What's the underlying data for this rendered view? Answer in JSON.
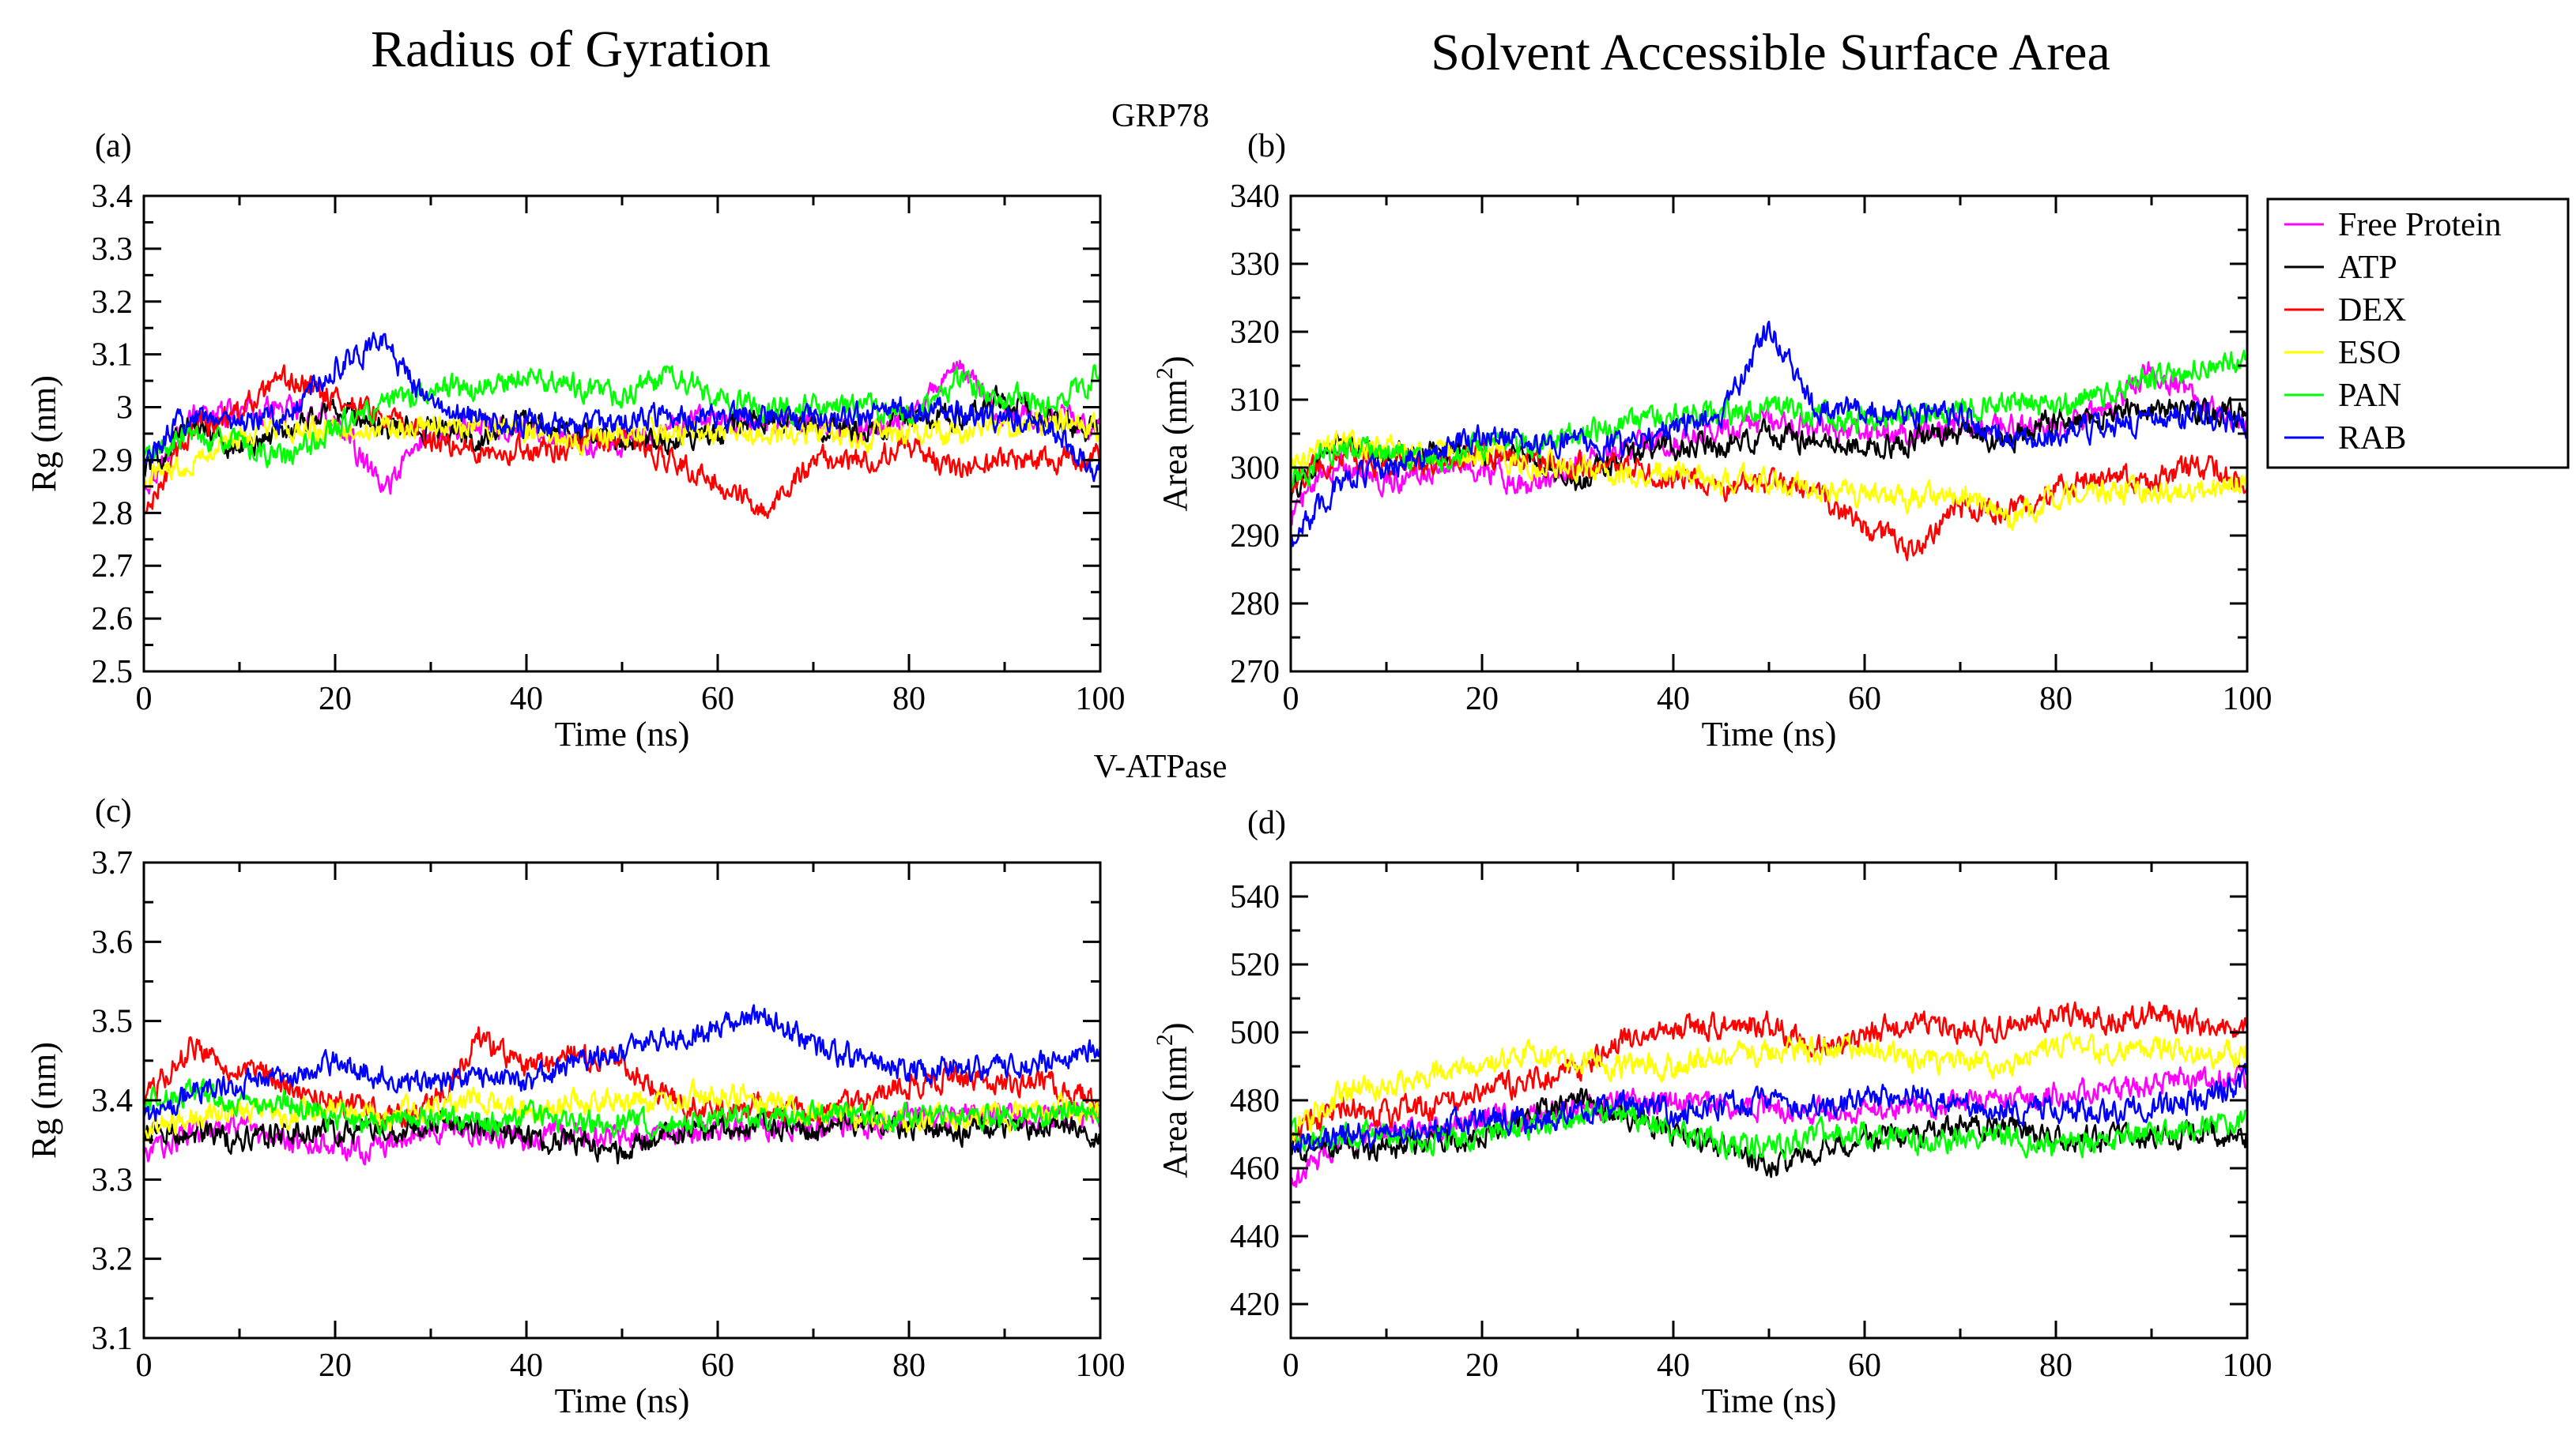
{
  "figure": {
    "column_titles": [
      "Radius of Gyration",
      "Solvent Accessible Surface Area"
    ],
    "section_titles": [
      "GRP78",
      "V-ATPase"
    ]
  },
  "legend": {
    "entries": [
      {
        "label": "Free Protein",
        "color": "#ff00ff"
      },
      {
        "label": "ATP",
        "color": "#000000"
      },
      {
        "label": "DEX",
        "color": "#ff0000"
      },
      {
        "label": "ESO",
        "color": "#ffff00"
      },
      {
        "label": "PAN",
        "color": "#00ff00"
      },
      {
        "label": "RAB",
        "color": "#0000ff"
      }
    ]
  },
  "chart_data": [
    {
      "type": "line",
      "panel": "(a)",
      "section": "GRP78",
      "xlabel": "Time (ns)",
      "ylabel": "Rg (nm)",
      "xlim": [
        0,
        100
      ],
      "ylim": [
        2.5,
        3.4
      ],
      "xticks": [
        "0",
        "20",
        "40",
        "60",
        "80",
        "100"
      ],
      "yticks": [
        "2.5",
        "2.6",
        "2.7",
        "2.8",
        "2.9",
        "3",
        "3.1",
        "3.2",
        "3.3",
        "3.4"
      ],
      "x": [
        0,
        5,
        10,
        15,
        20,
        25,
        30,
        35,
        40,
        45,
        50,
        55,
        60,
        65,
        70,
        75,
        80,
        85,
        90,
        95,
        100
      ],
      "series": [
        {
          "name": "Free Protein",
          "color": "#ff00ff",
          "values": [
            2.85,
            2.98,
            2.99,
            3.0,
            2.98,
            2.84,
            2.96,
            2.97,
            2.96,
            2.94,
            2.93,
            2.96,
            2.98,
            2.97,
            2.97,
            2.95,
            2.97,
            3.08,
            2.98,
            2.98,
            2.96
          ]
        },
        {
          "name": "ATP",
          "color": "#000000",
          "values": [
            2.88,
            2.97,
            2.92,
            2.96,
            3.0,
            2.96,
            2.96,
            2.94,
            2.98,
            2.95,
            2.93,
            2.94,
            2.95,
            2.98,
            2.96,
            2.96,
            2.98,
            2.98,
            3.02,
            2.97,
            2.95
          ]
        },
        {
          "name": "DEX",
          "color": "#ff0000",
          "values": [
            2.79,
            2.96,
            2.99,
            3.05,
            3.02,
            2.98,
            2.94,
            2.92,
            2.92,
            2.93,
            2.94,
            2.9,
            2.86,
            2.8,
            2.9,
            2.9,
            2.93,
            2.88,
            2.9,
            2.9,
            2.91
          ]
        },
        {
          "name": "ESO",
          "color": "#ffff00",
          "values": [
            2.87,
            2.9,
            2.94,
            2.96,
            2.95,
            2.96,
            2.97,
            2.96,
            2.95,
            2.94,
            2.95,
            2.96,
            2.95,
            2.95,
            2.96,
            2.94,
            2.95,
            2.95,
            2.96,
            2.97,
            2.96
          ]
        },
        {
          "name": "PAN",
          "color": "#00ff00",
          "values": [
            2.9,
            2.95,
            2.93,
            2.9,
            2.96,
            3.0,
            3.04,
            3.03,
            3.06,
            3.04,
            3.02,
            3.06,
            3.02,
            3.0,
            3.0,
            3.0,
            2.98,
            3.05,
            3.02,
            3.0,
            3.06
          ]
        },
        {
          "name": "RAB",
          "color": "#0000ff",
          "values": [
            2.9,
            2.99,
            2.97,
            2.98,
            3.08,
            3.12,
            3.0,
            2.98,
            2.97,
            2.96,
            2.97,
            2.98,
            2.98,
            2.98,
            2.98,
            2.98,
            3.0,
            2.99,
            2.98,
            2.96,
            2.88
          ]
        }
      ]
    },
    {
      "type": "line",
      "panel": "(b)",
      "section": "GRP78",
      "xlabel": "Time (ns)",
      "ylabel": "Area (nm",
      "ylabel_sup": "2",
      "ylabel_end": ")",
      "xlim": [
        0,
        100
      ],
      "ylim": [
        270,
        340
      ],
      "xticks": [
        "0",
        "20",
        "40",
        "60",
        "80",
        "100"
      ],
      "yticks": [
        "270",
        "280",
        "290",
        "300",
        "310",
        "320",
        "330",
        "340"
      ],
      "x": [
        0,
        5,
        10,
        15,
        20,
        25,
        30,
        35,
        40,
        45,
        50,
        55,
        60,
        65,
        70,
        75,
        80,
        85,
        90,
        95,
        100
      ],
      "series": [
        {
          "name": "Free Protein",
          "color": "#ff00ff",
          "values": [
            293,
            301,
            298,
            300,
            300,
            297,
            301,
            303,
            304,
            306,
            307,
            306,
            305,
            305,
            306,
            306,
            306,
            308,
            315,
            310,
            306
          ]
        },
        {
          "name": "ATP",
          "color": "#000000",
          "values": [
            296,
            304,
            302,
            302,
            302,
            302,
            298,
            302,
            303,
            303,
            305,
            304,
            303,
            304,
            305,
            304,
            307,
            307,
            309,
            308,
            308
          ]
        },
        {
          "name": "DEX",
          "color": "#ff0000",
          "values": [
            298,
            302,
            300,
            301,
            302,
            301,
            300,
            300,
            298,
            297,
            298,
            296,
            291,
            288,
            294,
            293,
            297,
            299,
            298,
            300,
            298
          ]
        },
        {
          "name": "ESO",
          "color": "#ffff00",
          "values": [
            300,
            304,
            303,
            302,
            302,
            301,
            300,
            299,
            299,
            298,
            298,
            297,
            296,
            295,
            296,
            292,
            296,
            297,
            296,
            297,
            298
          ]
        },
        {
          "name": "PAN",
          "color": "#00ff00",
          "values": [
            298,
            303,
            302,
            301,
            303,
            303,
            305,
            306,
            308,
            308,
            309,
            308,
            307,
            308,
            308,
            310,
            309,
            311,
            313,
            315,
            316
          ]
        },
        {
          "name": "RAB",
          "color": "#0000ff",
          "values": [
            289,
            298,
            300,
            302,
            305,
            304,
            304,
            303,
            306,
            307,
            321,
            308,
            309,
            308,
            308,
            304,
            305,
            306,
            307,
            308,
            306
          ]
        }
      ]
    },
    {
      "type": "line",
      "panel": "(c)",
      "section": "V-ATPase",
      "xlabel": "Time (ns)",
      "ylabel": "Rg (nm)",
      "xlim": [
        0,
        100
      ],
      "ylim": [
        3.1,
        3.7
      ],
      "xticks": [
        "0",
        "20",
        "40",
        "60",
        "80",
        "100"
      ],
      "yticks": [
        "3.1",
        "3.2",
        "3.3",
        "3.4",
        "3.5",
        "3.6",
        "3.7"
      ],
      "x": [
        0,
        5,
        10,
        15,
        20,
        25,
        30,
        35,
        40,
        45,
        50,
        55,
        60,
        65,
        70,
        75,
        80,
        85,
        90,
        95,
        100
      ],
      "series": [
        {
          "name": "Free Protein",
          "color": "#ff00ff",
          "values": [
            3.33,
            3.36,
            3.36,
            3.35,
            3.34,
            3.34,
            3.36,
            3.36,
            3.35,
            3.36,
            3.35,
            3.36,
            3.36,
            3.37,
            3.37,
            3.37,
            3.38,
            3.38,
            3.38,
            3.38,
            3.38
          ]
        },
        {
          "name": "ATP",
          "color": "#000000",
          "values": [
            3.36,
            3.36,
            3.35,
            3.36,
            3.36,
            3.36,
            3.37,
            3.37,
            3.35,
            3.35,
            3.33,
            3.36,
            3.36,
            3.37,
            3.36,
            3.37,
            3.37,
            3.36,
            3.37,
            3.37,
            3.36
          ]
        },
        {
          "name": "DEX",
          "color": "#ff0000",
          "values": [
            3.4,
            3.47,
            3.44,
            3.42,
            3.4,
            3.38,
            3.39,
            3.48,
            3.44,
            3.46,
            3.45,
            3.4,
            3.39,
            3.39,
            3.38,
            3.4,
            3.42,
            3.43,
            3.42,
            3.42,
            3.4
          ]
        },
        {
          "name": "ESO",
          "color": "#ffff00",
          "values": [
            3.36,
            3.38,
            3.39,
            3.38,
            3.39,
            3.38,
            3.39,
            3.4,
            3.39,
            3.4,
            3.4,
            3.4,
            3.41,
            3.4,
            3.39,
            3.38,
            3.37,
            3.38,
            3.38,
            3.39,
            3.38
          ]
        },
        {
          "name": "PAN",
          "color": "#00ff00",
          "values": [
            3.4,
            3.41,
            3.39,
            3.4,
            3.38,
            3.37,
            3.38,
            3.37,
            3.38,
            3.37,
            3.37,
            3.37,
            3.38,
            3.38,
            3.38,
            3.38,
            3.38,
            3.38,
            3.38,
            3.38,
            3.39
          ]
        },
        {
          "name": "RAB",
          "color": "#0000ff",
          "values": [
            3.38,
            3.41,
            3.42,
            3.43,
            3.45,
            3.43,
            3.42,
            3.43,
            3.42,
            3.45,
            3.46,
            3.48,
            3.49,
            3.51,
            3.47,
            3.45,
            3.44,
            3.44,
            3.44,
            3.45,
            3.47
          ]
        }
      ]
    },
    {
      "type": "line",
      "panel": "(d)",
      "section": "V-ATPase",
      "xlabel": "Time (ns)",
      "ylabel": "Area (nm",
      "ylabel_sup": "2",
      "ylabel_end": ")",
      "xlim": [
        0,
        100
      ],
      "ylim": [
        410,
        550
      ],
      "xticks": [
        "0",
        "20",
        "40",
        "60",
        "80",
        "100"
      ],
      "yticks": [
        "420",
        "440",
        "460",
        "480",
        "500",
        "520",
        "540"
      ],
      "x": [
        0,
        5,
        10,
        15,
        20,
        25,
        30,
        35,
        40,
        45,
        50,
        55,
        60,
        65,
        70,
        75,
        80,
        85,
        90,
        95,
        100
      ],
      "series": [
        {
          "name": "Free Protein",
          "color": "#ff00ff",
          "values": [
            455,
            468,
            470,
            472,
            474,
            476,
            478,
            480,
            480,
            479,
            478,
            477,
            476,
            478,
            480,
            480,
            482,
            483,
            485,
            486,
            487
          ]
        },
        {
          "name": "ATP",
          "color": "#000000",
          "values": [
            465,
            466,
            466,
            468,
            470,
            476,
            480,
            476,
            470,
            466,
            460,
            465,
            468,
            470,
            472,
            472,
            470,
            468,
            470,
            470,
            470
          ]
        },
        {
          "name": "DEX",
          "color": "#ff0000",
          "values": [
            468,
            478,
            476,
            478,
            482,
            486,
            488,
            498,
            500,
            502,
            502,
            496,
            500,
            502,
            500,
            502,
            506,
            504,
            506,
            502,
            500
          ]
        },
        {
          "name": "ESO",
          "color": "#ffff00",
          "values": [
            470,
            482,
            485,
            488,
            490,
            494,
            492,
            490,
            490,
            493,
            495,
            494,
            496,
            492,
            492,
            490,
            496,
            494,
            496,
            494,
            494
          ]
        },
        {
          "name": "PAN",
          "color": "#00ff00",
          "values": [
            470,
            470,
            470,
            468,
            470,
            472,
            476,
            476,
            470,
            468,
            466,
            470,
            470,
            468,
            468,
            470,
            466,
            468,
            470,
            472,
            474
          ]
        },
        {
          "name": "RAB",
          "color": "#0000ff",
          "values": [
            466,
            470,
            470,
            472,
            474,
            474,
            476,
            480,
            476,
            478,
            480,
            478,
            480,
            482,
            478,
            478,
            478,
            476,
            478,
            480,
            486
          ]
        }
      ]
    }
  ]
}
